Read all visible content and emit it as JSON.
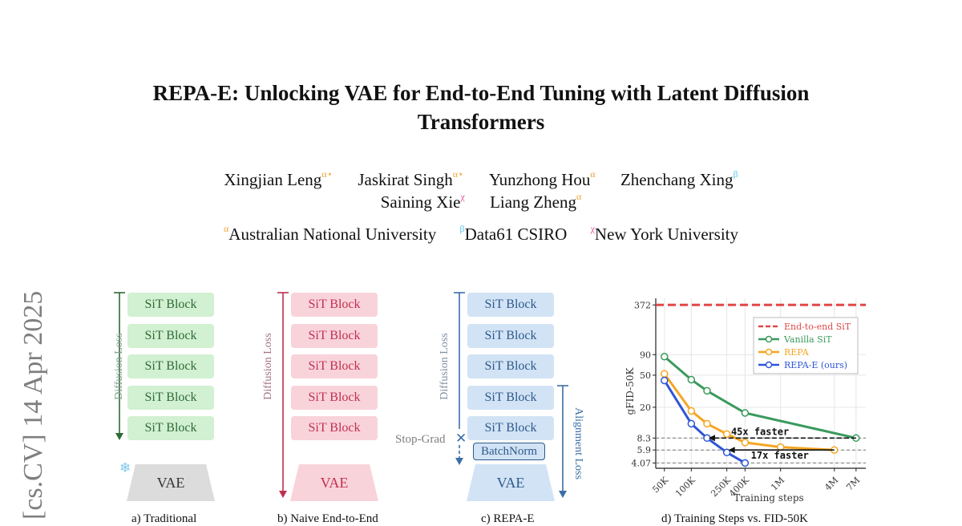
{
  "sidebar": {
    "text": "[cs.CV]  14 Apr 2025"
  },
  "paper": {
    "title_line1": "REPA-E: Unlocking VAE for End-to-End Tuning with Latent Diffusion",
    "title_line2": "Transformers",
    "authors": [
      {
        "name": "Xingjian Leng",
        "sup": "α⋆"
      },
      {
        "name": "Jaskirat Singh",
        "sup": "α⋆"
      },
      {
        "name": "Yunzhong Hou",
        "sup": "α"
      },
      {
        "name": "Zhenchang Xing",
        "sup": "β"
      },
      {
        "name": "Saining Xie",
        "sup": "χ"
      },
      {
        "name": "Liang Zheng",
        "sup": "α"
      }
    ],
    "affiliations": [
      {
        "sup": "α",
        "name": "Australian National University"
      },
      {
        "sup": "β",
        "name": "Data61 CSIRO"
      },
      {
        "sup": "χ",
        "name": "New York University"
      }
    ]
  },
  "figure": {
    "panel_a": {
      "blocks": [
        "SiT Block",
        "SiT Block",
        "SiT Block",
        "SiT Block",
        "SiT Block"
      ],
      "vae": "VAE",
      "loss": "Diffusion Loss",
      "caption": "a) Traditional"
    },
    "panel_b": {
      "blocks": [
        "SiT Block",
        "SiT Block",
        "SiT Block",
        "SiT Block",
        "SiT Block"
      ],
      "vae": "VAE",
      "loss": "Diffusion Loss",
      "caption": "b) Naive End-to-End"
    },
    "panel_c": {
      "blocks": [
        "SiT Block",
        "SiT Block",
        "SiT Block",
        "SiT Block",
        "SiT Block"
      ],
      "batchnorm": "BatchNorm",
      "stopgrad": "Stop-Grad",
      "vae": "VAE",
      "loss": "Diffusion Loss",
      "align": "Alignment Loss",
      "caption": "c) REPA-E"
    },
    "panel_d": {
      "caption": "d) Training Steps vs. FID-50K"
    }
  },
  "colors": {
    "green": "#3a9a5c",
    "orange": "#f5a623",
    "blue": "#2e55d6",
    "red": "#e04848",
    "arrow_green": "#2e6b35",
    "arrow_pink": "#c03050",
    "arrow_blue": "#3a6ea5"
  },
  "chart_data": {
    "type": "line",
    "xlabel": "Training steps",
    "ylabel": "gFID-50K",
    "x_scale": "log",
    "y_scale": "log",
    "x_ticks": [
      50000,
      100000,
      250000,
      400000,
      1000000,
      4000000,
      7000000
    ],
    "x_tick_labels": [
      "50K",
      "100K",
      "250K",
      "400K",
      "1M",
      "4M",
      "7M"
    ],
    "y_ticks": [
      4.07,
      5.9,
      8.3,
      20,
      50,
      90,
      372
    ],
    "y_tick_labels": [
      "4.07",
      "5.9",
      "8.3",
      "20",
      "50",
      "90",
      "372"
    ],
    "grid": true,
    "legend_position": "top-right",
    "series": [
      {
        "name": "End-to-end SiT",
        "color": "#e04848",
        "style": "dashed",
        "x": [
          50000,
          7000000
        ],
        "y": [
          372,
          372
        ]
      },
      {
        "name": "Vanilla SiT",
        "color": "#3a9a5c",
        "x": [
          50000,
          100000,
          150000,
          400000,
          7000000
        ],
        "y": [
          85,
          44,
          32,
          17,
          8.3
        ]
      },
      {
        "name": "REPA",
        "color": "#f5a623",
        "x": [
          50000,
          100000,
          150000,
          250000,
          400000,
          1000000,
          4000000
        ],
        "y": [
          52,
          18,
          12.5,
          9.3,
          7.3,
          6.4,
          5.9
        ]
      },
      {
        "name": "REPA-E (ours)",
        "color": "#2e55d6",
        "x": [
          50000,
          100000,
          150000,
          250000,
          400000
        ],
        "y": [
          43,
          12.5,
          8.3,
          5.5,
          4.07
        ]
      }
    ],
    "annotations": [
      {
        "text": "45x faster",
        "from_x": 7000000,
        "to_x": 150000,
        "y": 8.3
      },
      {
        "text": "17x faster",
        "from_x": 4000000,
        "to_x": 250000,
        "y": 5.9
      }
    ]
  }
}
